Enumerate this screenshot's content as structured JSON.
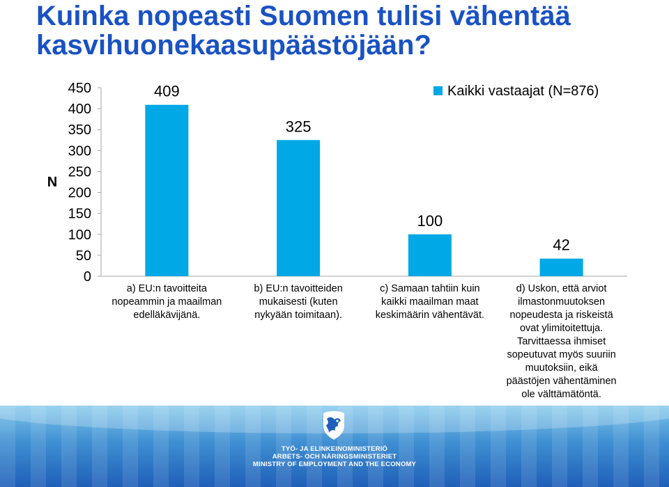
{
  "slide": {
    "title": "Kuinka nopeasti Suomen tulisi vähentää kasvihuonekaasupäästöjään?"
  },
  "colors": {
    "title": "#1a52c4",
    "bar": "#00a8e6",
    "text": "#000000",
    "axis": "#a6a6a6"
  },
  "chart_data": {
    "type": "bar",
    "ylabel": "N",
    "xlabel": "",
    "ylim": [
      0,
      450
    ],
    "yticks": [
      0,
      50,
      100,
      150,
      200,
      250,
      300,
      350,
      400,
      450
    ],
    "grid": false,
    "legend_position": "top-right",
    "categories": [
      "a) EU:n tavoitteita nopeammin ja maailman edelläkävijänä.",
      "b) EU:n tavoitteiden mukaisesti (kuten nykyään toimitaan).",
      "c) Samaan tahtiin kuin kaikki maailman maat keskimäärin vähentävät.",
      "d) Uskon, että arviot ilmastonmuutoksen nopeudesta ja riskeistä ovat ylimitoitettuja. Tarvittaessa ihmiset sopeutuvat myös suuriin muutoksiin, eikä päästöjen vähentäminen ole välttämätöntä."
    ],
    "series": [
      {
        "name": "Kaikki vastaajat (N=876)",
        "values": [
          409,
          325,
          100,
          42
        ]
      }
    ],
    "data_labels": [
      "409",
      "325",
      "100",
      "42"
    ]
  },
  "footer": {
    "emblem_icon": "finnish-lion-emblem",
    "ministry_fi": "TYÖ- JA ELINKEINOMINISTERIÖ",
    "ministry_sv": "ARBETS- OCH NÄRINGSMINISTERIET",
    "ministry_en": "MINISTRY OF EMPLOYMENT AND THE ECONOMY"
  }
}
